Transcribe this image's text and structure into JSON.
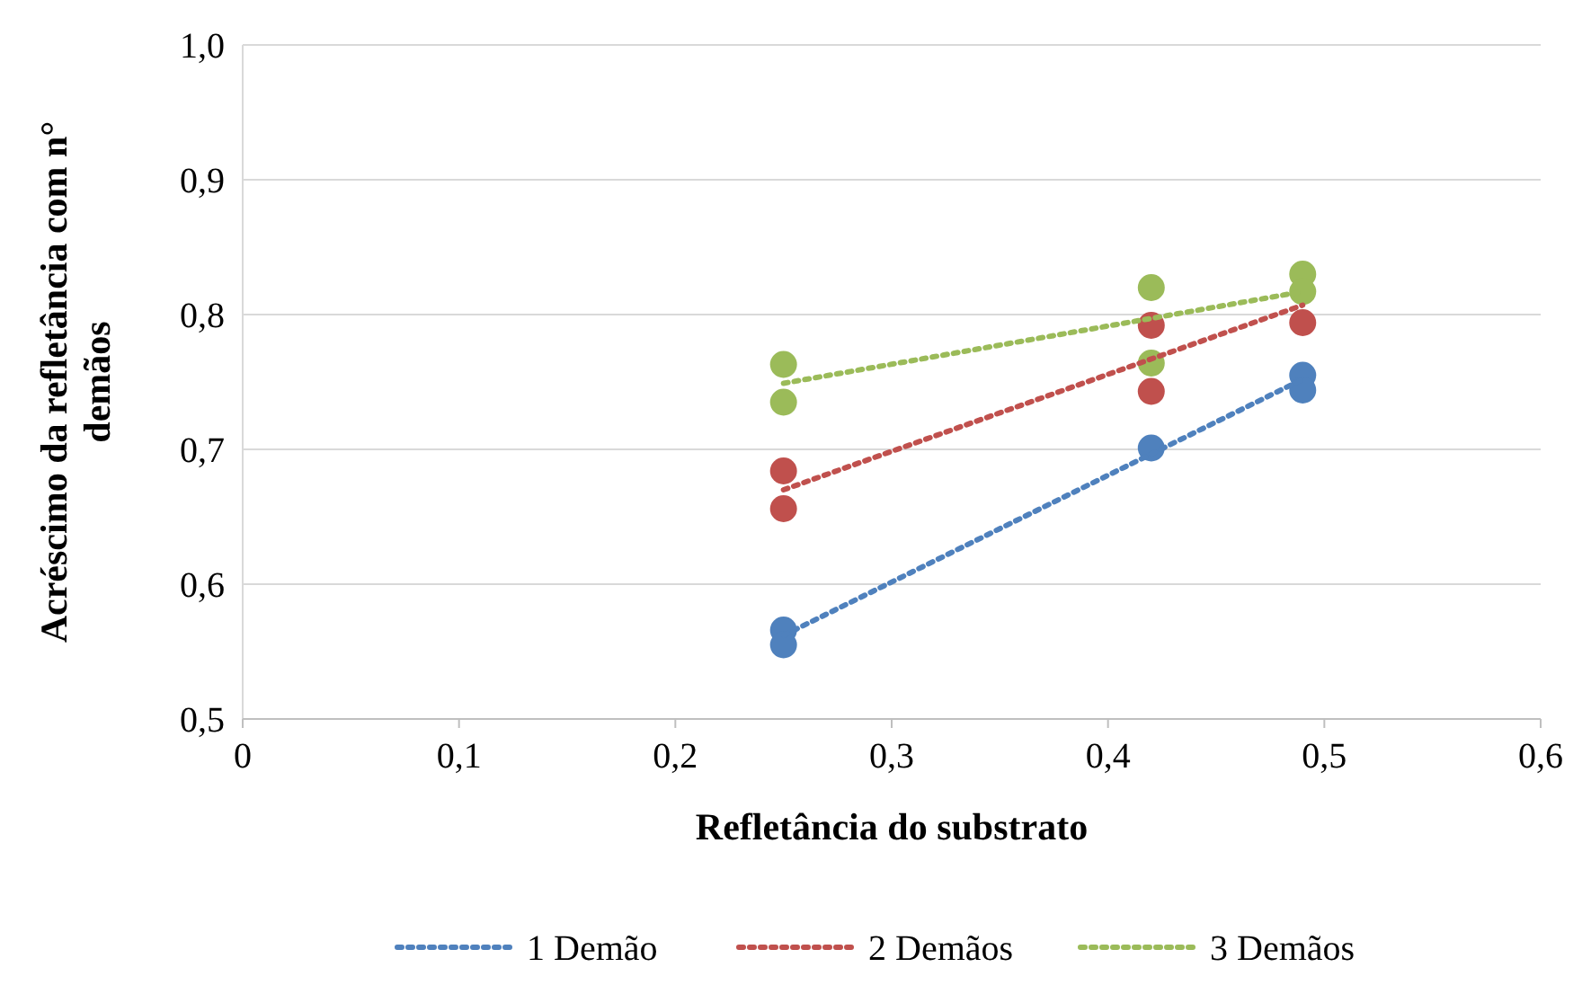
{
  "chart_data": {
    "type": "scatter",
    "xlabel": "Refletância do substrato",
    "ylabel": "Acréscimo da refletância com n° demãos",
    "xlim": [
      0,
      0.6
    ],
    "xticks": [
      0,
      {
        "value": 0.1,
        "label": "0,1"
      },
      {
        "value": 0.2,
        "label": "0,2"
      },
      {
        "value": 0.3,
        "label": "0,3"
      },
      {
        "value": 0.4,
        "label": "0,4"
      },
      {
        "value": 0.5,
        "label": "0,5"
      },
      {
        "value": 0.6,
        "label": "0,6"
      }
    ],
    "ylim": [
      0.5,
      1.0
    ],
    "yticks": [
      {
        "value": 0.5,
        "label": "0,5"
      },
      {
        "value": 0.6,
        "label": "0,6"
      },
      {
        "value": 0.7,
        "label": "0,7"
      },
      {
        "value": 0.8,
        "label": "0,8"
      },
      {
        "value": 0.9,
        "label": "0,9"
      },
      {
        "value": 1.0,
        "label": "1,0"
      }
    ],
    "grid": "y",
    "legend": "bottom",
    "marker": "circle",
    "series": [
      {
        "type": "scatter",
        "color": "#4f81bd",
        "x": [
          0.25,
          0.25,
          0.42,
          0.49,
          0.49
        ],
        "values": [
          0.566,
          0.555,
          0.701,
          0.755,
          0.744
        ]
      },
      {
        "type": "scatter",
        "color": "#c0504d",
        "x": [
          0.25,
          0.25,
          0.42,
          0.42,
          0.49
        ],
        "values": [
          0.684,
          0.656,
          0.792,
          0.743,
          0.794
        ]
      },
      {
        "type": "scatter",
        "color": "#9bbb59",
        "x": [
          0.25,
          0.25,
          0.42,
          0.42,
          0.49,
          0.49
        ],
        "values": [
          0.763,
          0.735,
          0.82,
          0.764,
          0.83,
          0.817
        ]
      },
      {
        "type": "line",
        "name": "1 Demão",
        "color": "#4f81bd",
        "line_style": "dotted",
        "marker": "none",
        "x": [
          0.25,
          0.49
        ],
        "values": [
          0.562,
          0.752
        ]
      },
      {
        "type": "line",
        "name": "2 Demãos",
        "color": "#c0504d",
        "line_style": "dotted",
        "marker": "none",
        "x": [
          0.25,
          0.49
        ],
        "values": [
          0.67,
          0.807
        ]
      },
      {
        "type": "line",
        "name": "3 Demãos",
        "color": "#9bbb59",
        "line_style": "dotted",
        "marker": "none",
        "x": [
          0.25,
          0.49
        ],
        "values": [
          0.749,
          0.817
        ]
      }
    ]
  }
}
